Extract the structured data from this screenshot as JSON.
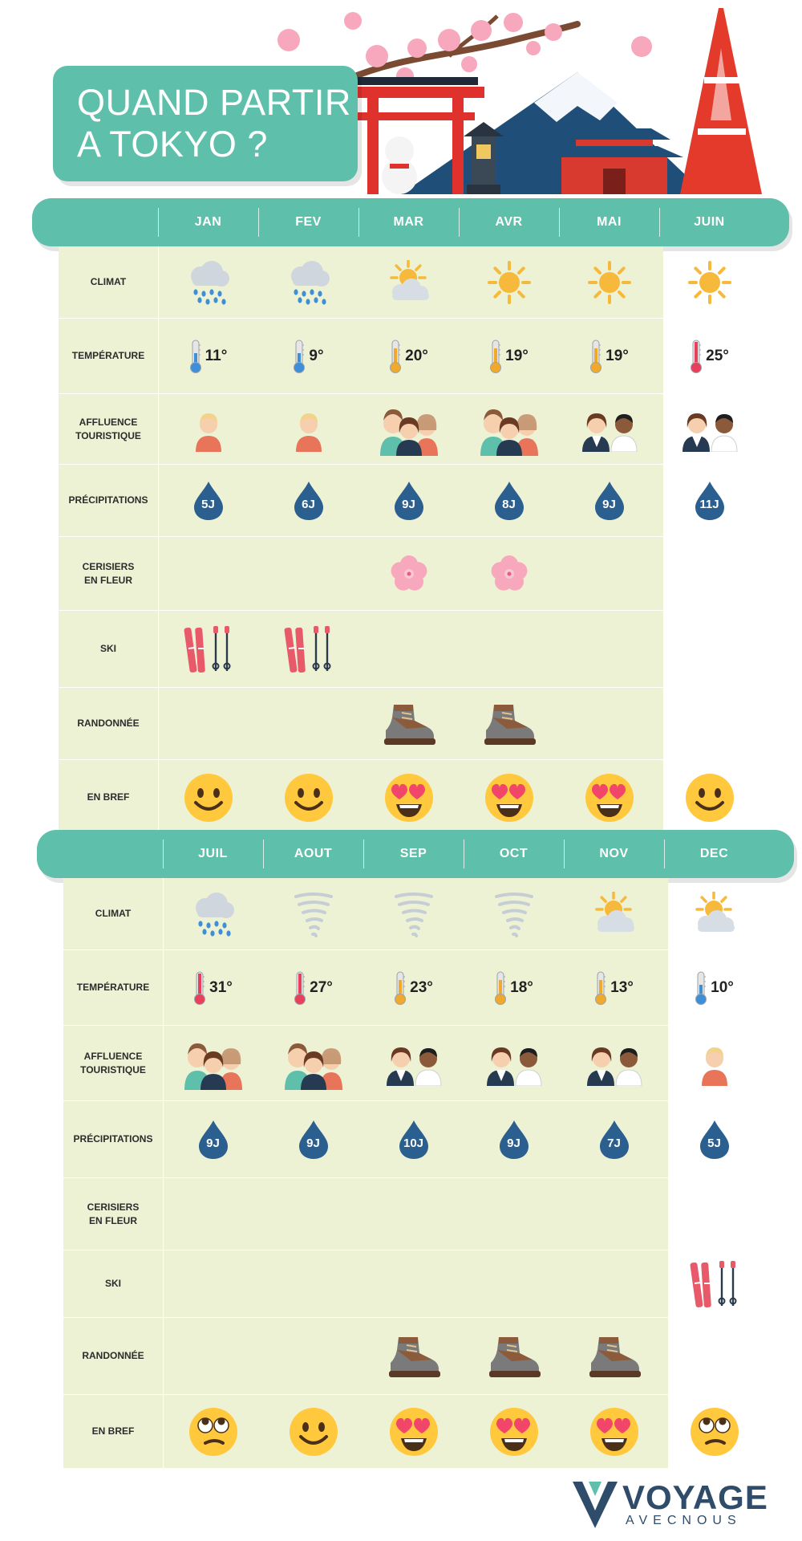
{
  "title": {
    "line1": "QUAND PARTIR",
    "line2": "A TOKYO ?"
  },
  "row_labels": {
    "climat": "CLIMAT",
    "temperature": "TEMPÉRATURE",
    "affluence": [
      "AFFLUENCE",
      "TOURISTIQUE"
    ],
    "precipitations": "PRÉCIPITATIONS",
    "cerisiers": [
      "CERISIERS",
      "EN FLEUR"
    ],
    "ski": "SKI",
    "randonnee": "RANDONNÉE",
    "bref": "EN BREF"
  },
  "halves": [
    {
      "months": [
        "JAN",
        "FEV",
        "MAR",
        "AVR",
        "MAI",
        "JUIN"
      ],
      "climat": [
        "rain-cloud-icon",
        "rain-cloud-icon",
        "sun-cloud-icon",
        "sun-icon",
        "sun-icon",
        "sun-icon"
      ],
      "temperature": [
        "11°",
        "9°",
        "20°",
        "19°",
        "19°",
        "25°"
      ],
      "thermo_level": [
        "cold",
        "cold",
        "mild",
        "mild",
        "mild",
        "hot"
      ],
      "affluence": [
        "one-person-icon",
        "one-person-icon",
        "crowd-icon",
        "crowd-icon",
        "two-people-icon",
        "two-people-icon"
      ],
      "precipitations": [
        "5J",
        "6J",
        "9J",
        "8J",
        "9J",
        "11J"
      ],
      "cerisiers": [
        false,
        false,
        true,
        true,
        false,
        false
      ],
      "ski": [
        true,
        true,
        false,
        false,
        false,
        false
      ],
      "randonnee": [
        false,
        false,
        true,
        true,
        false,
        false
      ],
      "bref": [
        "smile-emoji-icon",
        "smile-emoji-icon",
        "heart-eyes-emoji-icon",
        "heart-eyes-emoji-icon",
        "heart-eyes-emoji-icon",
        "smile-emoji-icon"
      ]
    },
    {
      "months": [
        "JUIL",
        "AOUT",
        "SEP",
        "OCT",
        "NOV",
        "DEC"
      ],
      "climat": [
        "rain-cloud-icon",
        "tornado-icon",
        "tornado-icon",
        "tornado-icon",
        "sun-cloud-icon",
        "sun-cloud-icon"
      ],
      "temperature": [
        "31°",
        "27°",
        "23°",
        "18°",
        "13°",
        "10°"
      ],
      "thermo_level": [
        "hot",
        "hot",
        "mild",
        "mild",
        "mild",
        "cold"
      ],
      "affluence": [
        "crowd-icon",
        "crowd-icon",
        "two-people-icon",
        "two-people-icon",
        "two-people-icon",
        "one-person-icon"
      ],
      "precipitations": [
        "9J",
        "9J",
        "10J",
        "9J",
        "7J",
        "5J"
      ],
      "cerisiers": [
        false,
        false,
        false,
        false,
        false,
        false
      ],
      "ski": [
        false,
        false,
        false,
        false,
        false,
        true
      ],
      "randonnee": [
        false,
        false,
        true,
        true,
        true,
        false
      ],
      "bref": [
        "eye-roll-emoji-icon",
        "smile-emoji-icon",
        "heart-eyes-emoji-icon",
        "heart-eyes-emoji-icon",
        "heart-eyes-emoji-icon",
        "eye-roll-emoji-icon"
      ]
    }
  ],
  "logo": {
    "main": "VOYAGE",
    "sub": "AVECNOUS"
  },
  "colors": {
    "teal": "#5ebfaa",
    "table_bg": "#eef2d4",
    "drop": "#2b5f8f",
    "sakura": "#f7a8bc",
    "navy": "#2f4d6a"
  }
}
